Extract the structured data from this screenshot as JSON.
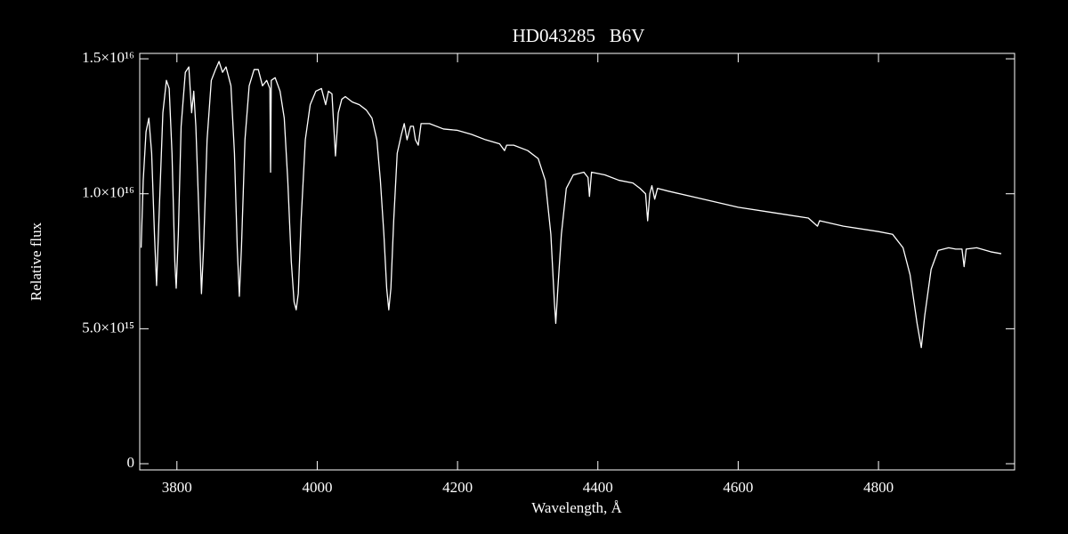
{
  "chart_data": {
    "type": "line",
    "title": "HD043285   B6V",
    "x_label": "Wavelength, Å",
    "y_label": "Relative flux",
    "xlim": [
      3747,
      4994
    ],
    "ylim": [
      -230000000000000.0,
      1.52e+16
    ],
    "xticks": [
      3800,
      4000,
      4200,
      4400,
      4600,
      4800
    ],
    "yticks": [
      0,
      {
        "value": 5000000000000000.0,
        "label": "5.0×10¹⁵"
      },
      {
        "value": 1e+16,
        "label": "1.0×10¹⁶"
      },
      {
        "value": 1.5e+16,
        "label": "1.5×10¹⁶"
      }
    ],
    "series": [
      {
        "color": "#ffffff",
        "x": [
          3749,
          3752,
          3756,
          3760,
          3764,
          3768,
          3771,
          3775,
          3780,
          3785,
          3789,
          3793,
          3797,
          3799,
          3802,
          3806,
          3812,
          3817,
          3821,
          3824,
          3827,
          3831,
          3835,
          3838,
          3843,
          3849,
          3855,
          3860,
          3865,
          3870,
          3877,
          3882,
          3886,
          3889,
          3892,
          3897,
          3903,
          3910,
          3916,
          3922,
          3928,
          3932.5,
          3933.5,
          3934.5,
          3940,
          3947,
          3953,
          3958,
          3963,
          3967,
          3970,
          3973,
          3977,
          3983,
          3990,
          3998,
          4006,
          4012,
          4016,
          4021,
          4026,
          4030,
          4035,
          4040,
          4050,
          4060,
          4070,
          4078,
          4085,
          4090,
          4095,
          4099,
          4102,
          4105,
          4109,
          4114,
          4120,
          4124,
          4128,
          4133,
          4137,
          4140,
          4144,
          4148,
          4160,
          4180,
          4200,
          4220,
          4240,
          4260,
          4267,
          4270,
          4280,
          4300,
          4315,
          4325,
          4333,
          4338,
          4340,
          4343,
          4348,
          4355,
          4365,
          4380,
          4386,
          4388,
          4391,
          4410,
          4430,
          4450,
          4460,
          4468,
          4471,
          4474,
          4477,
          4481,
          4485,
          4500,
          4550,
          4600,
          4650,
          4700,
          4713,
          4716,
          4750,
          4800,
          4820,
          4835,
          4845,
          4855,
          4861,
          4866,
          4875,
          4885,
          4900,
          4910,
          4919,
          4922,
          4925,
          4940,
          4960,
          4975
        ],
        "values": [
          8000000000000000.0,
          1.05e+16,
          1.23e+16,
          1.28e+16,
          1.15e+16,
          8500000000000000.0,
          6600000000000000.0,
          9500000000000000.0,
          1.3e+16,
          1.42e+16,
          1.39e+16,
          1.15e+16,
          7500000000000000.0,
          6500000000000000.0,
          8500000000000000.0,
          1.25e+16,
          1.45e+16,
          1.47e+16,
          1.3e+16,
          1.38e+16,
          1.25e+16,
          9500000000000000.0,
          6300000000000000.0,
          8000000000000000.0,
          1.2e+16,
          1.42e+16,
          1.46e+16,
          1.49e+16,
          1.45e+16,
          1.47e+16,
          1.4e+16,
          1.15e+16,
          8000000000000000.0,
          6200000000000000.0,
          8000000000000000.0,
          1.2e+16,
          1.4e+16,
          1.46e+16,
          1.46e+16,
          1.4e+16,
          1.42e+16,
          1.39e+16,
          1.08e+16,
          1.42e+16,
          1.43e+16,
          1.38e+16,
          1.28e+16,
          1.05e+16,
          7500000000000000.0,
          6000000000000000.0,
          5700000000000000.0,
          6300000000000000.0,
          9000000000000000.0,
          1.2e+16,
          1.33e+16,
          1.38e+16,
          1.39e+16,
          1.33e+16,
          1.38e+16,
          1.37e+16,
          1.14e+16,
          1.3e+16,
          1.35e+16,
          1.36e+16,
          1.34e+16,
          1.33e+16,
          1.31e+16,
          1.28e+16,
          1.2e+16,
          1.05e+16,
          8500000000000000.0,
          6500000000000000.0,
          5700000000000000.0,
          6500000000000000.0,
          9000000000000000.0,
          1.15e+16,
          1.22e+16,
          1.26e+16,
          1.2e+16,
          1.25e+16,
          1.25e+16,
          1.2e+16,
          1.18e+16,
          1.26e+16,
          1.26e+16,
          1.24e+16,
          1.235e+16,
          1.22e+16,
          1.2e+16,
          1.185e+16,
          1.16e+16,
          1.18e+16,
          1.18e+16,
          1.16e+16,
          1.13e+16,
          1.05e+16,
          8500000000000000.0,
          6000000000000000.0,
          5200000000000000.0,
          6500000000000000.0,
          8500000000000000.0,
          1.02e+16,
          1.07e+16,
          1.08e+16,
          1.06e+16,
          9900000000000000.0,
          1.08e+16,
          1.07e+16,
          1.05e+16,
          1.04e+16,
          1.02e+16,
          1e+16,
          9000000000000000.0,
          1e+16,
          1.03e+16,
          9800000000000000.0,
          1.02e+16,
          1.01e+16,
          9800000000000000.0,
          9500000000000000.0,
          9300000000000000.0,
          9100000000000000.0,
          8800000000000000.0,
          9000000000000000.0,
          8800000000000000.0,
          8600000000000000.0,
          8500000000000000.0,
          8000000000000000.0,
          7000000000000000.0,
          5200000000000000.0,
          4300000000000000.0,
          5500000000000000.0,
          7200000000000000.0,
          7900000000000000.0,
          8000000000000000.0,
          7950000000000000.0,
          7950000000000000.0,
          7300000000000000.0,
          7950000000000000.0,
          8000000000000000.0,
          7850000000000000.0,
          7780000000000000.0
        ]
      }
    ]
  }
}
